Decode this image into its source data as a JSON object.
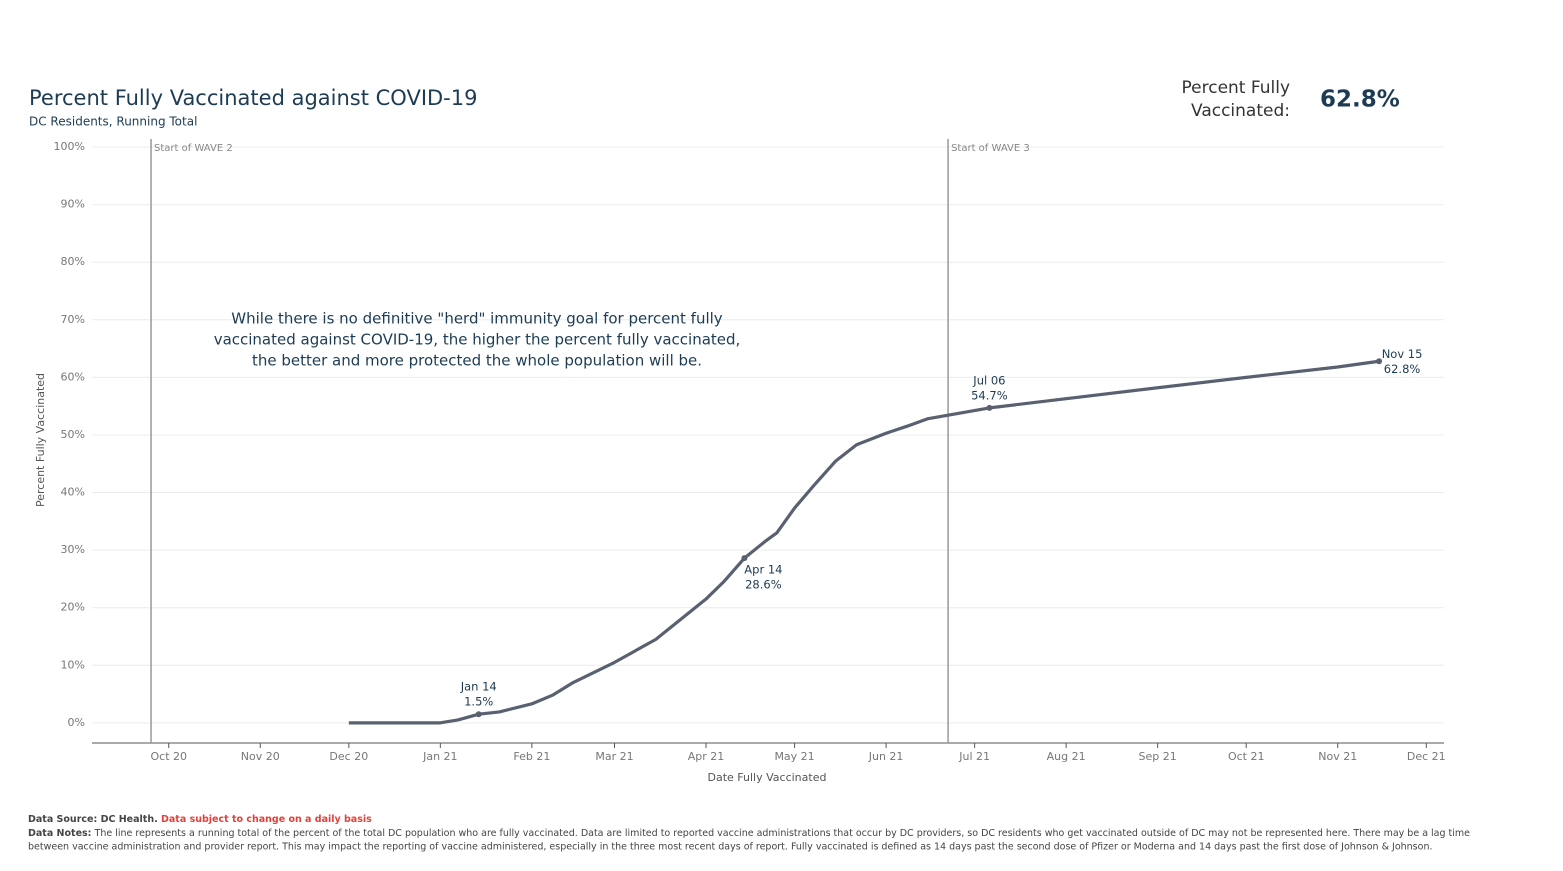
{
  "chart_data": {
    "type": "line",
    "title": "Percent Fully Vaccinated against COVID-19",
    "subtitle": "DC Residents, Running Total",
    "kpi": {
      "label_lines": [
        "Percent Fully",
        "Vaccinated:"
      ],
      "value": "62.8%"
    },
    "xlabel": "Date Fully Vaccinated",
    "ylabel": "Percent Fully Vaccinated",
    "xlim": [
      "2020-09-05",
      "2021-12-07"
    ],
    "xticks": [
      {
        "value": "2020-10-01",
        "label": "Oct 20"
      },
      {
        "value": "2020-11-01",
        "label": "Nov 20"
      },
      {
        "value": "2020-12-01",
        "label": "Dec 20"
      },
      {
        "value": "2021-01-01",
        "label": "Jan 21"
      },
      {
        "value": "2021-02-01",
        "label": "Feb 21"
      },
      {
        "value": "2021-03-01",
        "label": "Mar 21"
      },
      {
        "value": "2021-04-01",
        "label": "Apr 21"
      },
      {
        "value": "2021-05-01",
        "label": "May 21"
      },
      {
        "value": "2021-06-01",
        "label": "Jun 21"
      },
      {
        "value": "2021-07-01",
        "label": "Jul 21"
      },
      {
        "value": "2021-08-01",
        "label": "Aug 21"
      },
      {
        "value": "2021-09-01",
        "label": "Sep 21"
      },
      {
        "value": "2021-10-01",
        "label": "Oct 21"
      },
      {
        "value": "2021-11-01",
        "label": "Nov 21"
      },
      {
        "value": "2021-12-01",
        "label": "Dec 21"
      }
    ],
    "ylim": [
      -3.5,
      101.4
    ],
    "yticks": [
      {
        "value": 0,
        "label": "0%"
      },
      {
        "value": 10,
        "label": "10%"
      },
      {
        "value": 20,
        "label": "20%"
      },
      {
        "value": 30,
        "label": "30%"
      },
      {
        "value": 40,
        "label": "40%"
      },
      {
        "value": 50,
        "label": "50%"
      },
      {
        "value": 60,
        "label": "60%"
      },
      {
        "value": 70,
        "label": "70%"
      },
      {
        "value": 80,
        "label": "80%"
      },
      {
        "value": 90,
        "label": "90%"
      },
      {
        "value": 100,
        "label": "100%"
      }
    ],
    "grid": true,
    "reference_lines": [
      {
        "x": "2020-09-25",
        "label": "Start of WAVE 2"
      },
      {
        "x": "2021-06-22",
        "label": "Start of WAVE 3"
      }
    ],
    "annotation_lines": [
      "While there is no definitive \"herd\" immunity goal for percent fully",
      "vaccinated against COVID-19, the higher the percent fully vaccinated,",
      "the better and more protected the whole population will be."
    ],
    "x": [
      "2020-12-01",
      "2021-01-01",
      "2021-01-07",
      "2021-01-14",
      "2021-01-21",
      "2021-02-01",
      "2021-02-08",
      "2021-02-15",
      "2021-03-01",
      "2021-03-15",
      "2021-04-01",
      "2021-04-07",
      "2021-04-14",
      "2021-04-21",
      "2021-04-25",
      "2021-05-01",
      "2021-05-08",
      "2021-05-15",
      "2021-05-22",
      "2021-06-01",
      "2021-06-08",
      "2021-06-15",
      "2021-07-06",
      "2021-08-01",
      "2021-09-01",
      "2021-10-01",
      "2021-11-01",
      "2021-11-15"
    ],
    "series": [
      {
        "name": "Percent Fully Vaccinated",
        "color": "#596170",
        "values": [
          0,
          0,
          0.5,
          1.5,
          1.9,
          3.3,
          4.8,
          7.0,
          10.5,
          14.5,
          21.5,
          24.5,
          28.6,
          31.5,
          33.0,
          37.3,
          41.5,
          45.5,
          48.3,
          50.3,
          51.5,
          52.8,
          54.7,
          56.3,
          58.2,
          60.0,
          61.8,
          62.8
        ],
        "value_labels": [
          null,
          null,
          null,
          "1.5%",
          null,
          null,
          null,
          null,
          null,
          null,
          null,
          null,
          "28.6%",
          null,
          null,
          null,
          null,
          null,
          null,
          null,
          null,
          null,
          "54.7%",
          null,
          null,
          null,
          null,
          "62.8%"
        ],
        "point_labels": [
          null,
          null,
          null,
          "Jan 14",
          null,
          null,
          null,
          null,
          null,
          null,
          null,
          null,
          "Apr 14",
          null,
          null,
          null,
          null,
          null,
          null,
          null,
          null,
          null,
          "Jul 06",
          null,
          null,
          null,
          null,
          "Nov 15"
        ]
      }
    ],
    "footer": {
      "source_heading": "Data Source:",
      "source": "DC Health.",
      "source_warning": "Data subject to change on a daily basis",
      "notes_heading": "Data Notes:",
      "notes_lines": [
        "The line represents a running total of the percent of the total DC population who are fully vaccinated. Data are limited to reported vaccine administrations that occur by DC providers, so DC residents who get vaccinated outside of DC may not be represented here.   There may be a lag time",
        "between vaccine administration and provider report. This may impact the reporting of vaccine administered, especially in the three most recent days of report. Fully vaccinated is defined as 14 days past the second dose of Pfizer or Moderna and 14 days past the first dose of Johnson & Johnson."
      ]
    }
  }
}
